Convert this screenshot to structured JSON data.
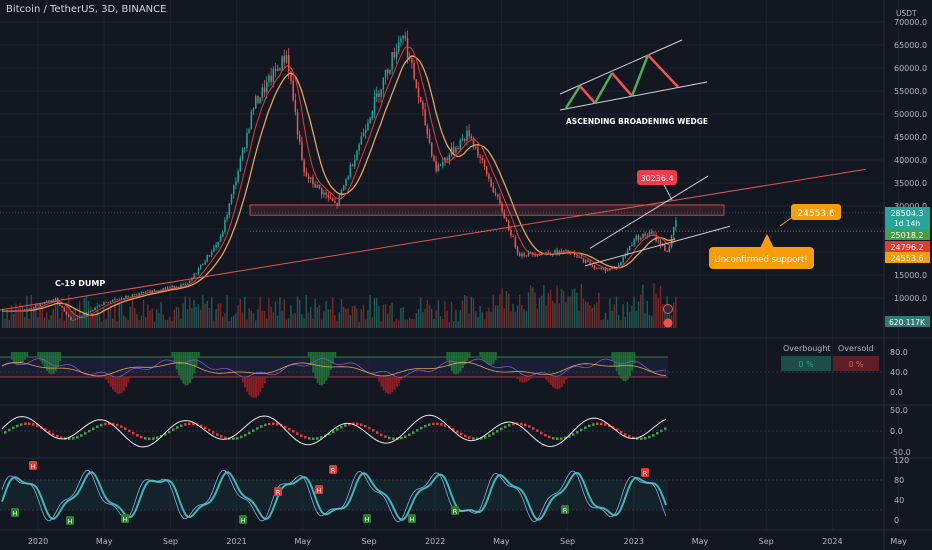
{
  "header": {
    "symbol": "Bitcoin / TetherUS, 3D, BINANCE",
    "currency": "USDT"
  },
  "annotations": {
    "wedge_label": "ASCENDING BROADENING WEDGE",
    "covid_label": "C-19 DUMP",
    "peak_tag": "30236.4",
    "support_tag": "24553.6",
    "callout": "Unconfirmed support!"
  },
  "price_tags": {
    "last": "28504.3",
    "countdown": "1d 14h",
    "t2": "25018.2",
    "t3": "24796.2",
    "t4": "24553.6",
    "volume": "620.117K"
  },
  "panel_rsi": {
    "overbought_label": "Overbought",
    "oversold_label": "Oversold",
    "overbought_val": "0 %",
    "oversold_val": "0 %"
  },
  "colors": {
    "up": "#26a69a",
    "down": "#ef5350",
    "ma_fast": "#e53935",
    "ma_slow": "#e3a35a",
    "orange": "#f59d0b",
    "cyan": "#3fb7b7"
  },
  "chart_data": {
    "type": "candlestick",
    "x_ticks": [
      "2020",
      "May",
      "Sep",
      "2021",
      "May",
      "Sep",
      "2022",
      "May",
      "Sep",
      "2023",
      "May",
      "Sep",
      "2024",
      "May"
    ],
    "y_ticks": [
      "70000.0",
      "65000.0",
      "60000.0",
      "55000.0",
      "50000.0",
      "45000.0",
      "40000.0",
      "35000.0",
      "30000.0",
      "25000.0",
      "20000.0",
      "15000.0",
      "10000.0"
    ],
    "price_path": [
      [
        "2019-12",
        7200
      ],
      [
        "2020-02",
        9800
      ],
      [
        "2020-03",
        5000
      ],
      [
        "2020-05",
        9000
      ],
      [
        "2020-08",
        11700
      ],
      [
        "2020-10",
        13000
      ],
      [
        "2020-12",
        23000
      ],
      [
        "2021-01",
        37000
      ],
      [
        "2021-02",
        52000
      ],
      [
        "2021-04",
        63000
      ],
      [
        "2021-05",
        37000
      ],
      [
        "2021-07",
        30000
      ],
      [
        "2021-09",
        50000
      ],
      [
        "2021-11",
        68000
      ],
      [
        "2022-01",
        38000
      ],
      [
        "2022-03",
        46000
      ],
      [
        "2022-05",
        29000
      ],
      [
        "2022-06",
        19500
      ],
      [
        "2022-09",
        20000
      ],
      [
        "2022-11",
        16000
      ],
      [
        "2022-12",
        16800
      ],
      [
        "2023-01",
        23000
      ],
      [
        "2023-02",
        24000
      ],
      [
        "2023-03",
        20000
      ],
      [
        "2023-03-20",
        28504
      ]
    ],
    "rsi_ticks": [
      "80.0",
      "40.0",
      "0.0"
    ],
    "osc_ticks": [
      "50.0",
      "0.0",
      "-50.0"
    ],
    "stoch_ticks": [
      "120",
      "80",
      "40",
      "0"
    ]
  }
}
